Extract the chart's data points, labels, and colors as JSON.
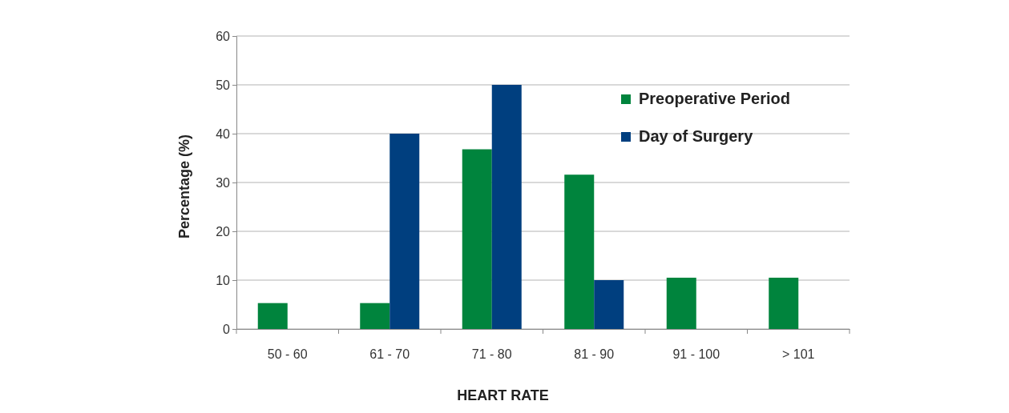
{
  "chart_data": {
    "type": "bar",
    "xlabel": "HEART RATE",
    "ylabel": "Percentage  (%)",
    "categories": [
      "50 - 60",
      "61 - 70",
      "71 - 80",
      "81 - 90",
      "91 - 100",
      "> 101"
    ],
    "series": [
      {
        "name": "Preoperative Period",
        "color": "#00843d",
        "values": [
          5.3,
          5.3,
          36.8,
          31.6,
          10.5,
          10.5
        ]
      },
      {
        "name": "Day of Surgery",
        "color": "#003f7f",
        "values": [
          0,
          40,
          50,
          10,
          0,
          0
        ]
      }
    ],
    "ylim": [
      0,
      60
    ],
    "yticks": [
      0,
      10,
      20,
      30,
      40,
      50,
      60
    ],
    "grid": "y",
    "legend": "top right"
  }
}
